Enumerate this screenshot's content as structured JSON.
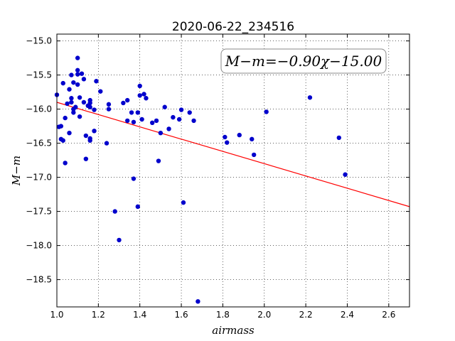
{
  "chart_data": {
    "type": "scatter",
    "title": "2020-06-22_234516",
    "xlabel": "airmass",
    "ylabel": "M−m",
    "xlim": [
      1.0,
      2.7
    ],
    "ylim": [
      -18.9,
      -14.9
    ],
    "xticks": [
      "1.0",
      "1.2",
      "1.4",
      "1.6",
      "1.8",
      "2.0",
      "2.2",
      "2.4",
      "2.6"
    ],
    "xtick_values": [
      1.0,
      1.2,
      1.4,
      1.6,
      1.8,
      2.0,
      2.2,
      2.4,
      2.6
    ],
    "yticks": [
      "−15.0",
      "−15.5",
      "−16.0",
      "−16.5",
      "−17.0",
      "−17.5",
      "−18.0",
      "−18.5"
    ],
    "ytick_values": [
      -15.0,
      -15.5,
      -16.0,
      -16.5,
      -17.0,
      -17.5,
      -18.0,
      -18.5
    ],
    "grid": true,
    "annotation": "M−m=−0.90χ−15.00",
    "fit": {
      "slope": -0.9,
      "intercept": -15.0,
      "color": "#ff0000"
    },
    "points_color": "#0000cc",
    "points": [
      [
        1.0,
        -15.79
      ],
      [
        1.01,
        -16.26
      ],
      [
        1.02,
        -16.25
      ],
      [
        1.02,
        -16.44
      ],
      [
        1.03,
        -15.62
      ],
      [
        1.03,
        -16.46
      ],
      [
        1.04,
        -16.79
      ],
      [
        1.04,
        -16.13
      ],
      [
        1.05,
        -15.92
      ],
      [
        1.06,
        -15.71
      ],
      [
        1.06,
        -16.35
      ],
      [
        1.07,
        -15.84
      ],
      [
        1.07,
        -15.9
      ],
      [
        1.07,
        -15.5
      ],
      [
        1.08,
        -16.0
      ],
      [
        1.08,
        -16.05
      ],
      [
        1.08,
        -15.61
      ],
      [
        1.09,
        -15.97
      ],
      [
        1.1,
        -15.43
      ],
      [
        1.1,
        -15.49
      ],
      [
        1.1,
        -15.64
      ],
      [
        1.1,
        -15.25
      ],
      [
        1.11,
        -15.83
      ],
      [
        1.11,
        -16.11
      ],
      [
        1.12,
        -15.48
      ],
      [
        1.13,
        -15.56
      ],
      [
        1.13,
        -15.9
      ],
      [
        1.14,
        -16.39
      ],
      [
        1.14,
        -16.73
      ],
      [
        1.15,
        -15.95
      ],
      [
        1.16,
        -15.87
      ],
      [
        1.16,
        -15.91
      ],
      [
        1.16,
        -15.97
      ],
      [
        1.16,
        -16.43
      ],
      [
        1.16,
        -16.46
      ],
      [
        1.18,
        -16.32
      ],
      [
        1.18,
        -16.01
      ],
      [
        1.19,
        -15.59
      ],
      [
        1.21,
        -15.74
      ],
      [
        1.24,
        -16.5
      ],
      [
        1.25,
        -15.93
      ],
      [
        1.25,
        -16.0
      ],
      [
        1.28,
        -17.5
      ],
      [
        1.3,
        -17.92
      ],
      [
        1.32,
        -15.91
      ],
      [
        1.34,
        -16.17
      ],
      [
        1.34,
        -15.87
      ],
      [
        1.36,
        -16.05
      ],
      [
        1.37,
        -16.19
      ],
      [
        1.37,
        -17.02
      ],
      [
        1.39,
        -16.05
      ],
      [
        1.39,
        -17.43
      ],
      [
        1.4,
        -15.66
      ],
      [
        1.4,
        -15.8
      ],
      [
        1.41,
        -16.15
      ],
      [
        1.42,
        -15.78
      ],
      [
        1.43,
        -15.84
      ],
      [
        1.46,
        -16.2
      ],
      [
        1.48,
        -16.17
      ],
      [
        1.49,
        -16.76
      ],
      [
        1.5,
        -16.35
      ],
      [
        1.52,
        -15.97
      ],
      [
        1.54,
        -16.29
      ],
      [
        1.56,
        -16.12
      ],
      [
        1.59,
        -16.15
      ],
      [
        1.6,
        -16.01
      ],
      [
        1.61,
        -17.37
      ],
      [
        1.64,
        -16.05
      ],
      [
        1.66,
        -16.17
      ],
      [
        1.68,
        -18.82
      ],
      [
        1.81,
        -16.41
      ],
      [
        1.82,
        -16.49
      ],
      [
        1.88,
        -16.38
      ],
      [
        1.94,
        -16.44
      ],
      [
        1.95,
        -16.67
      ],
      [
        2.01,
        -16.04
      ],
      [
        2.22,
        -15.83
      ],
      [
        2.36,
        -16.42
      ],
      [
        2.39,
        -16.96
      ]
    ]
  }
}
